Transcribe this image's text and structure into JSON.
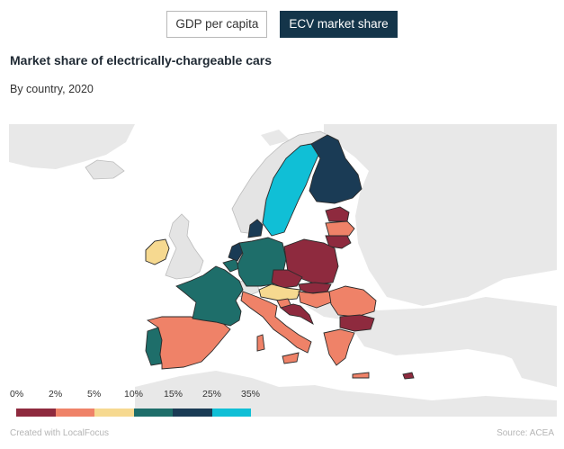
{
  "tabs": [
    {
      "label": "GDP per capita",
      "active": false
    },
    {
      "label": "ECV market share",
      "active": true
    }
  ],
  "title": "Market share of electrically-chargeable cars",
  "subtitle": "By country, 2020",
  "legend": {
    "labels": [
      "0%",
      "2%",
      "5%",
      "10%",
      "15%",
      "25%",
      "35%"
    ],
    "colors": [
      "#8e2a3e",
      "#ef8268",
      "#f6d990",
      "#1e6e6a",
      "#1a3b55",
      "#10bfd6"
    ]
  },
  "footer": {
    "credit": "Created with LocalFocus",
    "source": "Source:  ACEA"
  },
  "colors": {
    "land_background": "#e8e8e8",
    "no_data": "#e4e4e4",
    "sea": "#ffffff",
    "border": "#2b2b2b",
    "active_tab": "#14354a"
  },
  "countries": [
    {
      "name": "Iceland",
      "cls": 0
    },
    {
      "name": "Norway",
      "cls": 0
    },
    {
      "name": "United Kingdom",
      "cls": 0
    },
    {
      "name": "Switzerland",
      "cls": 0
    },
    {
      "name": "Sweden",
      "cls": 6
    },
    {
      "name": "Finland",
      "cls": 5
    },
    {
      "name": "Netherlands",
      "cls": 5
    },
    {
      "name": "Denmark",
      "cls": 5
    },
    {
      "name": "Germany",
      "cls": 4
    },
    {
      "name": "France",
      "cls": 4
    },
    {
      "name": "Portugal",
      "cls": 4
    },
    {
      "name": "Belgium",
      "cls": 4
    },
    {
      "name": "Ireland",
      "cls": 3
    },
    {
      "name": "Austria",
      "cls": 3
    },
    {
      "name": "Spain",
      "cls": 2
    },
    {
      "name": "Italy",
      "cls": 2
    },
    {
      "name": "Latvia",
      "cls": 2
    },
    {
      "name": "Hungary",
      "cls": 2
    },
    {
      "name": "Romania",
      "cls": 2
    },
    {
      "name": "Greece",
      "cls": 2
    },
    {
      "name": "Slovenia",
      "cls": 2
    },
    {
      "name": "Estonia",
      "cls": 1
    },
    {
      "name": "Lithuania",
      "cls": 1
    },
    {
      "name": "Poland",
      "cls": 1
    },
    {
      "name": "Czechia",
      "cls": 1
    },
    {
      "name": "Slovakia",
      "cls": 1
    },
    {
      "name": "Croatia",
      "cls": 1
    },
    {
      "name": "Bulgaria",
      "cls": 1
    },
    {
      "name": "Cyprus",
      "cls": 1
    }
  ]
}
